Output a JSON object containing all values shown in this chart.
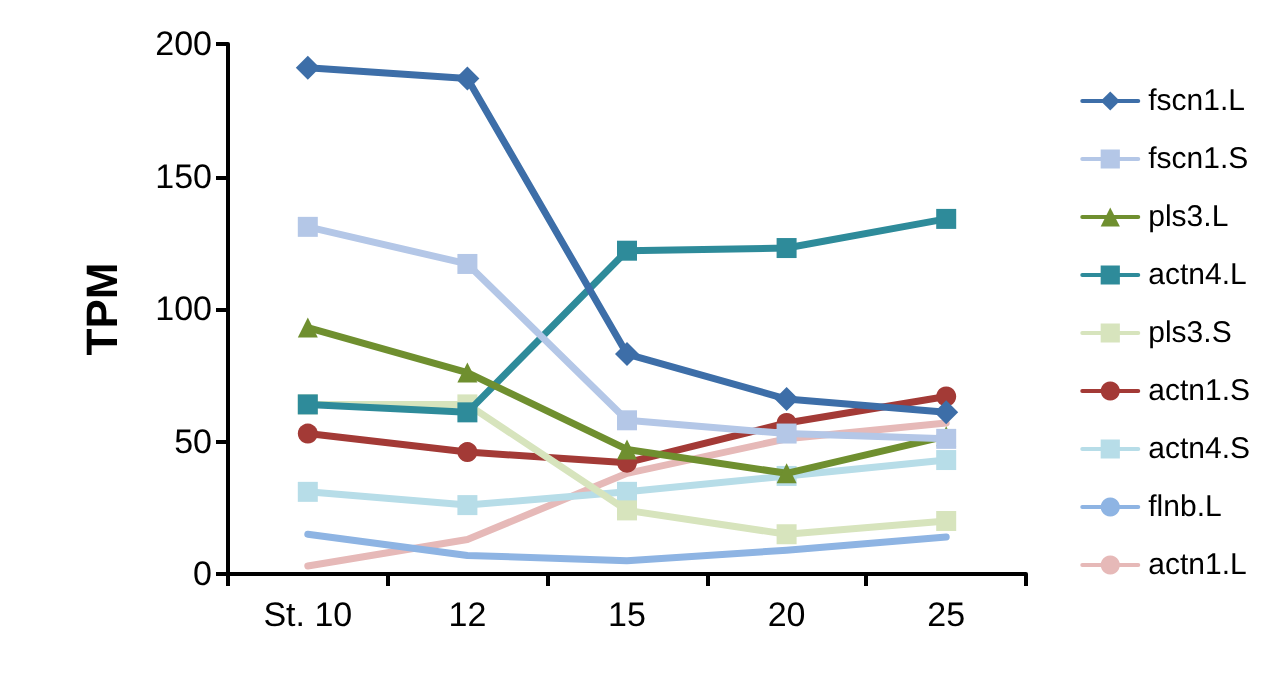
{
  "chart_data": {
    "type": "line",
    "ylabel": "TPM",
    "categories": [
      "St. 10",
      "12",
      "15",
      "20",
      "25"
    ],
    "ylim": [
      0,
      200
    ],
    "yticks": [
      0,
      50,
      100,
      150,
      200
    ],
    "grid": false,
    "legend": "right",
    "line_style": "solid",
    "series": [
      {
        "name": "fscn1.L",
        "color": "#3d6ea8",
        "marker": "diamond",
        "values": [
          191,
          187,
          83,
          66,
          61
        ]
      },
      {
        "name": "fscn1.S",
        "color": "#b4c7e7",
        "marker": "square",
        "values": [
          131,
          117,
          58,
          53,
          51
        ]
      },
      {
        "name": "pls3.L",
        "color": "#6f8f2f",
        "marker": "triangle",
        "values": [
          93,
          76,
          47,
          38,
          52
        ]
      },
      {
        "name": "actn4.L",
        "color": "#2e8b9a",
        "marker": "square",
        "values": [
          64,
          61,
          122,
          123,
          134
        ]
      },
      {
        "name": "pls3.S",
        "color": "#d7e4bd",
        "marker": "square",
        "values": [
          64,
          64,
          24,
          15,
          20
        ]
      },
      {
        "name": "actn1.S",
        "color": "#a33a36",
        "marker": "circle",
        "values": [
          53,
          46,
          42,
          57,
          67
        ]
      },
      {
        "name": "actn4.S",
        "color": "#b7dde8",
        "marker": "square",
        "values": [
          31,
          26,
          31,
          37,
          43
        ]
      },
      {
        "name": "flnb.L",
        "color": "#8eb4e3",
        "marker": "none",
        "values": [
          15,
          7,
          5,
          9,
          14
        ]
      },
      {
        "name": "actn1.L",
        "color": "#e6b9b8",
        "marker": "none",
        "values": [
          3,
          13,
          38,
          51,
          57
        ]
      }
    ]
  }
}
